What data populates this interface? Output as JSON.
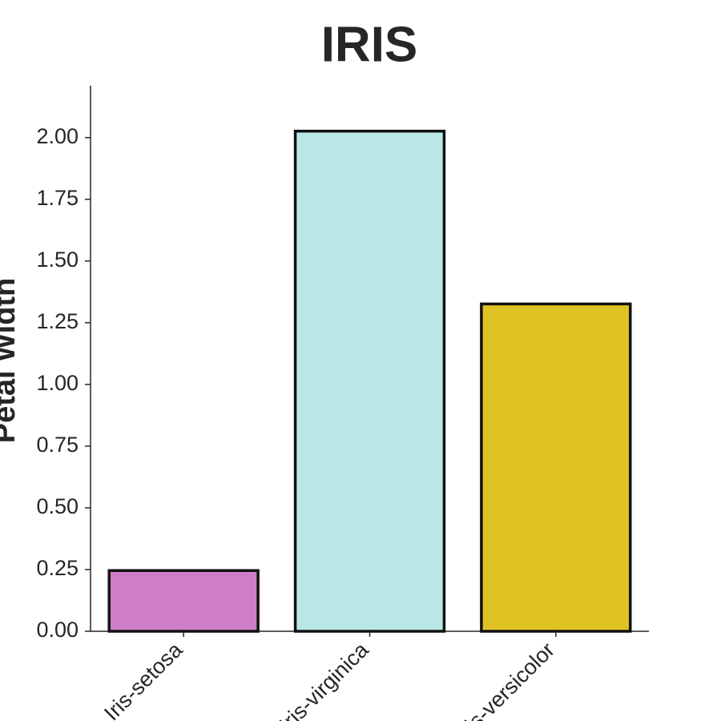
{
  "chart_data": {
    "type": "bar",
    "title": "IRIS",
    "y_label": "Petal Width",
    "categories": [
      "Iris-setosa",
      "Iris-virginica",
      "Iris-versicolor"
    ],
    "values": [
      0.246,
      2.026,
      1.326
    ],
    "colors": [
      "#cd7ec7",
      "#b8e7e6",
      "#dfc224"
    ],
    "edge_color": "#111111",
    "ylim": [
      0,
      2.21
    ],
    "yticks": [
      {
        "value": 0,
        "label": "0.00"
      },
      {
        "value": 0.25,
        "label": "0.25"
      },
      {
        "value": 0.5,
        "label": "0.50"
      },
      {
        "value": 0.75,
        "label": "0.75"
      },
      {
        "value": 1,
        "label": "1.00"
      },
      {
        "value": 1.25,
        "label": "1.25"
      },
      {
        "value": 1.5,
        "label": "1.50"
      },
      {
        "value": 1.75,
        "label": "1.75"
      },
      {
        "value": 2,
        "label": "2.00"
      }
    ],
    "grid": false
  }
}
